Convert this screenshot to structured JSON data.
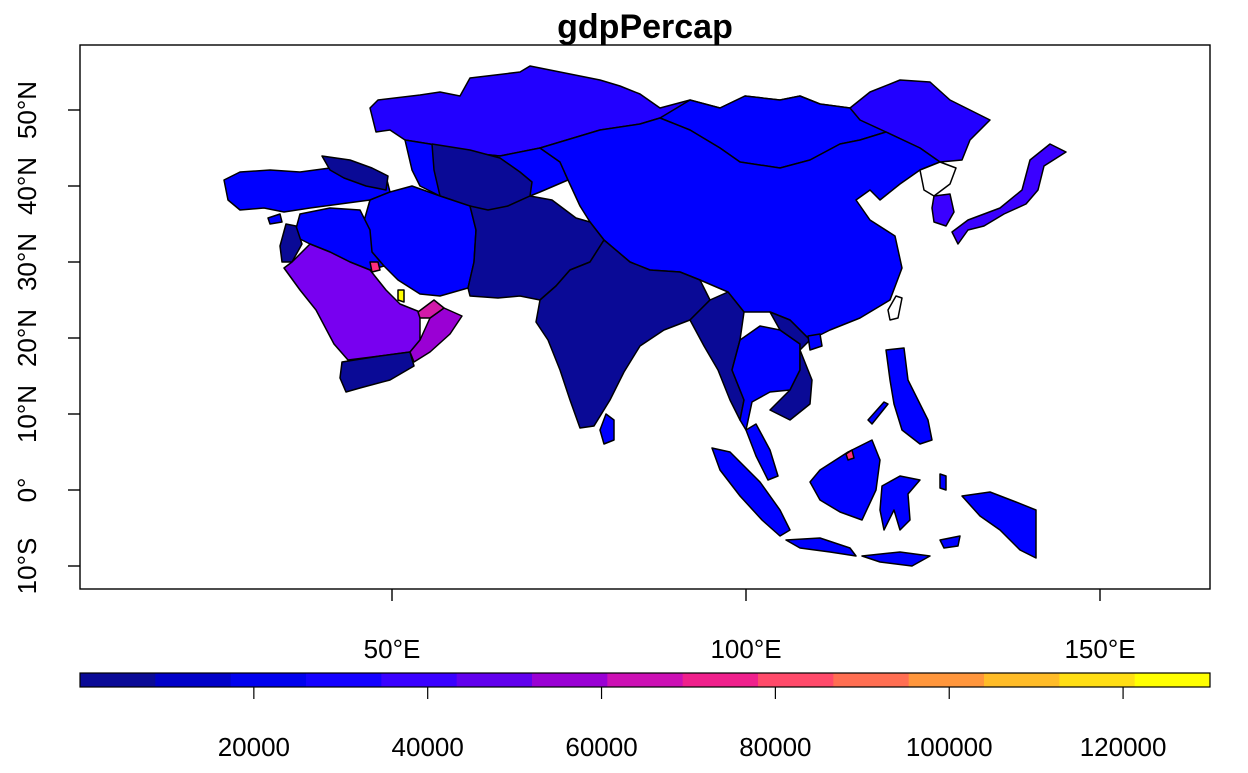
{
  "title": "gdpPercap",
  "palette": {
    "dark_navy": "#0a0a96",
    "navy_blue": "#0000c8",
    "blue": "#0000ff",
    "blue_violet": "#2200ff",
    "violet": "#5a00ff",
    "purple": "#7800f0",
    "magenta": "#d21aa8",
    "pink": "#ff2e7d",
    "yellow": "#ffff00",
    "no_data": "#ffffff"
  },
  "y_axis": {
    "ticks": [
      {
        "label": "10°S",
        "lat": -10
      },
      {
        "label": "0°",
        "lat": 0
      },
      {
        "label": "10°N",
        "lat": 10
      },
      {
        "label": "20°N",
        "lat": 20
      },
      {
        "label": "30°N",
        "lat": 30
      },
      {
        "label": "40°N",
        "lat": 40
      },
      {
        "label": "50°N",
        "lat": 50
      }
    ]
  },
  "x_axis": {
    "ticks": [
      {
        "label": "50°E",
        "lon": 50
      },
      {
        "label": "100°E",
        "lon": 100
      },
      {
        "label": "150°E",
        "lon": 150
      }
    ]
  },
  "legend": {
    "min": 0,
    "max": 130000,
    "colors": [
      "#0a0a96",
      "#0000c8",
      "#0000ee",
      "#1400ff",
      "#3a00ff",
      "#6200ee",
      "#9a00d4",
      "#cc10b4",
      "#f0208c",
      "#ff4a6a",
      "#ff6e52",
      "#ff963c",
      "#ffbc28",
      "#ffde14",
      "#ffff00"
    ],
    "ticks": [
      {
        "label": "20000",
        "value": 20000
      },
      {
        "label": "40000",
        "value": 40000
      },
      {
        "label": "60000",
        "value": 60000
      },
      {
        "label": "80000",
        "value": 80000
      },
      {
        "label": "100000",
        "value": 100000
      },
      {
        "label": "120000",
        "value": 120000
      }
    ]
  }
}
